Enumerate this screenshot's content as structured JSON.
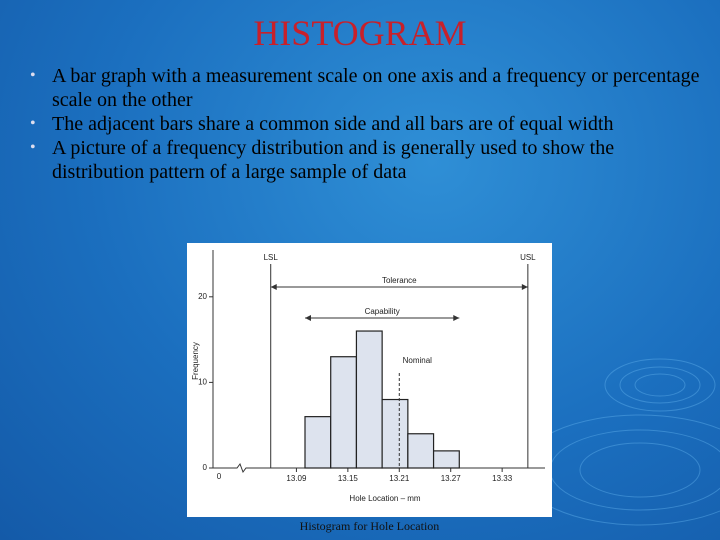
{
  "slide": {
    "title": "HISTOGRAM",
    "bullets": [
      "A bar graph with a measurement scale on one axis and a frequency or percentage scale on the other",
      "The adjacent bars share a common side and all bars are of equal width",
      "A picture of a frequency distribution and is generally used to show the distribution pattern of a large sample of data"
    ],
    "caption": "Histogram for Hole Location"
  },
  "chart_data": {
    "type": "histogram",
    "x_label": "Hole Location – mm",
    "y_label": "Frequency",
    "bins": [
      13.1,
      13.13,
      13.16,
      13.19,
      13.22,
      13.25,
      13.28
    ],
    "values": [
      6,
      13,
      16,
      8,
      4,
      2
    ],
    "color": "#dde3ee",
    "xlim": [
      13.03,
      13.38
    ],
    "xticks": [
      13.09,
      13.15,
      13.21,
      13.27,
      13.33
    ],
    "x_origin": 0,
    "ylim": [
      0,
      25
    ],
    "yticks": [
      0,
      10,
      20
    ],
    "reference_lines": [
      {
        "label": "LSL",
        "value": 13.06
      },
      {
        "label": "USL",
        "value": 13.36
      },
      {
        "label": "Nominal",
        "value": 13.21
      }
    ],
    "ranges": [
      {
        "label": "Tolerance",
        "from": 13.06,
        "to": 13.36
      },
      {
        "label": "Capability",
        "from": 13.1,
        "to": 13.28
      }
    ]
  }
}
